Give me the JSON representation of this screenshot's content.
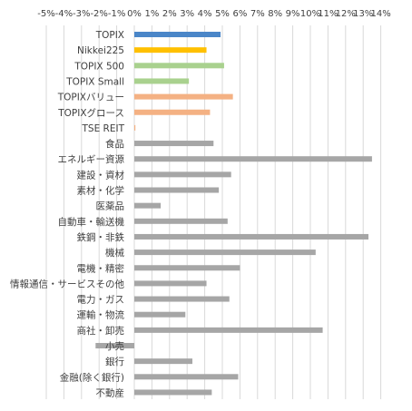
{
  "chart_data": {
    "type": "bar",
    "orientation": "horizontal",
    "title": "",
    "xlabel": "",
    "ylabel": "",
    "xlim": [
      -5,
      14
    ],
    "ticks": [
      -5,
      -4,
      -3,
      -2,
      -1,
      0,
      1,
      2,
      3,
      4,
      5,
      6,
      7,
      8,
      9,
      10,
      11,
      12,
      13,
      14
    ],
    "tick_labels": [
      "-5%",
      "-4%",
      "-3%",
      "-2%",
      "-1%",
      "0%",
      "1%",
      "2%",
      "3%",
      "4%",
      "5%",
      "6%",
      "7%",
      "8%",
      "9%",
      "10%",
      "11%",
      "12%",
      "13%",
      "14%"
    ],
    "grid": true,
    "legend": "none",
    "categories": [
      "TOPIX",
      "Nikkei225",
      "TOPIX 500",
      "TOPIX Small",
      "TOPIXバリュー",
      "TOPIXグロース",
      "TSE REIT",
      "食品",
      "エネルギー資源",
      "建設・資材",
      "素材・化学",
      "医薬品",
      "自動車・輸送機",
      "鉄鋼・非鉄",
      "機械",
      "電機・精密",
      "情報通信・サービスその他",
      "電力・ガス",
      "運輸・物流",
      "商社・卸売",
      "小売",
      "銀行",
      "金融(除く銀行)",
      "不動産"
    ],
    "values": [
      4.9,
      4.1,
      5.1,
      3.1,
      5.6,
      4.3,
      0.05,
      4.5,
      13.5,
      5.5,
      4.8,
      1.5,
      5.3,
      13.3,
      10.3,
      6.0,
      4.1,
      5.4,
      2.9,
      10.7,
      -2.2,
      3.3,
      5.9,
      4.4
    ],
    "bar_colors": [
      "#4a86c8",
      "#ffc000",
      "#a9d18e",
      "#a9d18e",
      "#f4b183",
      "#f4b183",
      "#f4b183",
      "#a6a6a6",
      "#a6a6a6",
      "#a6a6a6",
      "#a6a6a6",
      "#a6a6a6",
      "#a6a6a6",
      "#a6a6a6",
      "#a6a6a6",
      "#a6a6a6",
      "#a6a6a6",
      "#a6a6a6",
      "#a6a6a6",
      "#a6a6a6",
      "#a6a6a6",
      "#a6a6a6",
      "#a6a6a6",
      "#a6a6a6"
    ],
    "colors": {
      "text": "#404040",
      "grid": "#d9d9d9"
    }
  }
}
